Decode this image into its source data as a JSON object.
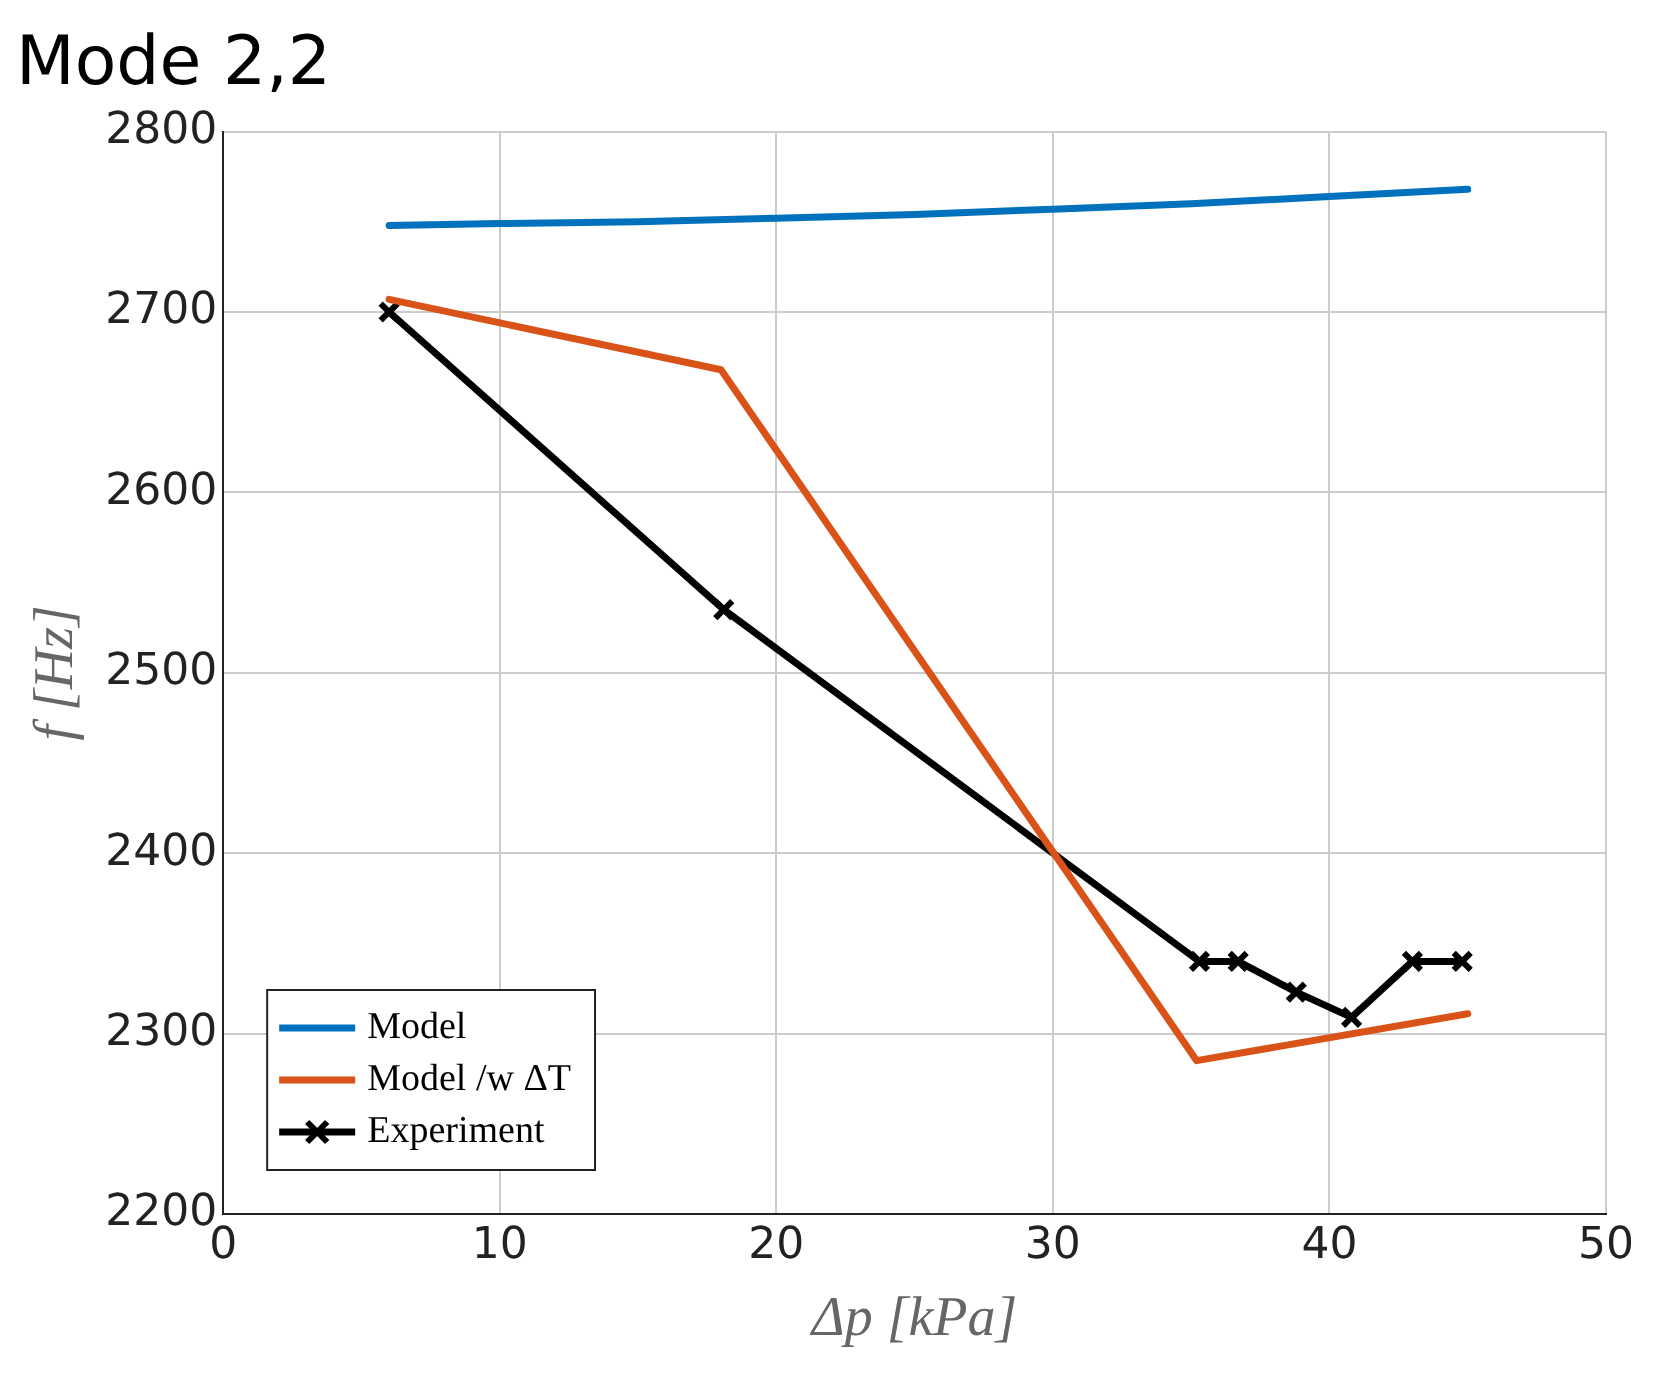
{
  "chart_data": {
    "type": "line",
    "title": "Mode 2,2",
    "xlabel": "Δp [kPa]",
    "ylabel": "f [Hz]",
    "xlim": [
      0,
      50
    ],
    "xticks": [
      0,
      10,
      20,
      30,
      40,
      50
    ],
    "ylim": [
      2200,
      2800
    ],
    "yticks": [
      2200,
      2300,
      2400,
      2500,
      2600,
      2700,
      2800
    ],
    "grid": true,
    "legend": "bottom left",
    "series": [
      {
        "name": "Model",
        "color": "#0072bd",
        "x": [
          6,
          10,
          15,
          20,
          25,
          30,
          35,
          40,
          45
        ],
        "values": [
          2748,
          2749,
          2750,
          2752,
          2754,
          2757,
          2760,
          2764,
          2768
        ],
        "marker": "none"
      },
      {
        "name": "Model /w ΔT",
        "color": "#d95319",
        "x": [
          6,
          18,
          35.2,
          45
        ],
        "values": [
          2707,
          2668,
          2285,
          2311
        ],
        "marker": "none"
      },
      {
        "name": "Experiment",
        "color": "#000000",
        "x": [
          6,
          18.1,
          35.3,
          36.7,
          38.8,
          40.8,
          43,
          44.8
        ],
        "values": [
          2700,
          2535,
          2340,
          2340,
          2323,
          2309,
          2340,
          2340
        ],
        "marker": "cross"
      }
    ]
  }
}
